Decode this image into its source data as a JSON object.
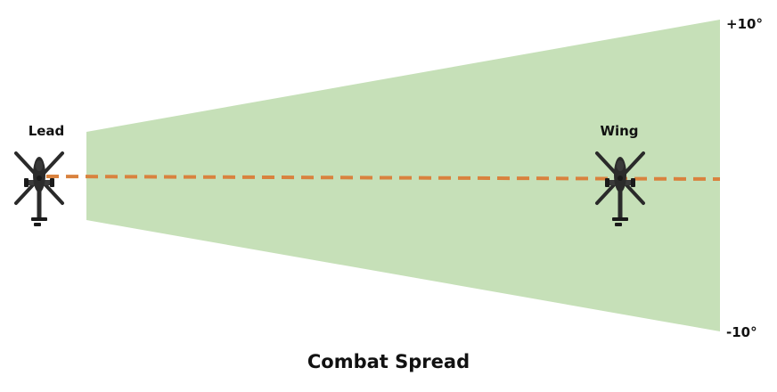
{
  "diagram": {
    "title": "Combat Spread",
    "lead_label": "Lead",
    "wing_label": "Wing",
    "upper_limit_label": "+10°",
    "lower_limit_label": "-10°",
    "colors": {
      "sector_fill": "#c6e0b8",
      "line_of_sight": "#d9823e",
      "aircraft": "#2b2b2b",
      "text": "#111111"
    },
    "icons": {
      "lead_aircraft": "attack-helicopter-icon",
      "wing_aircraft": "attack-helicopter-icon"
    }
  }
}
